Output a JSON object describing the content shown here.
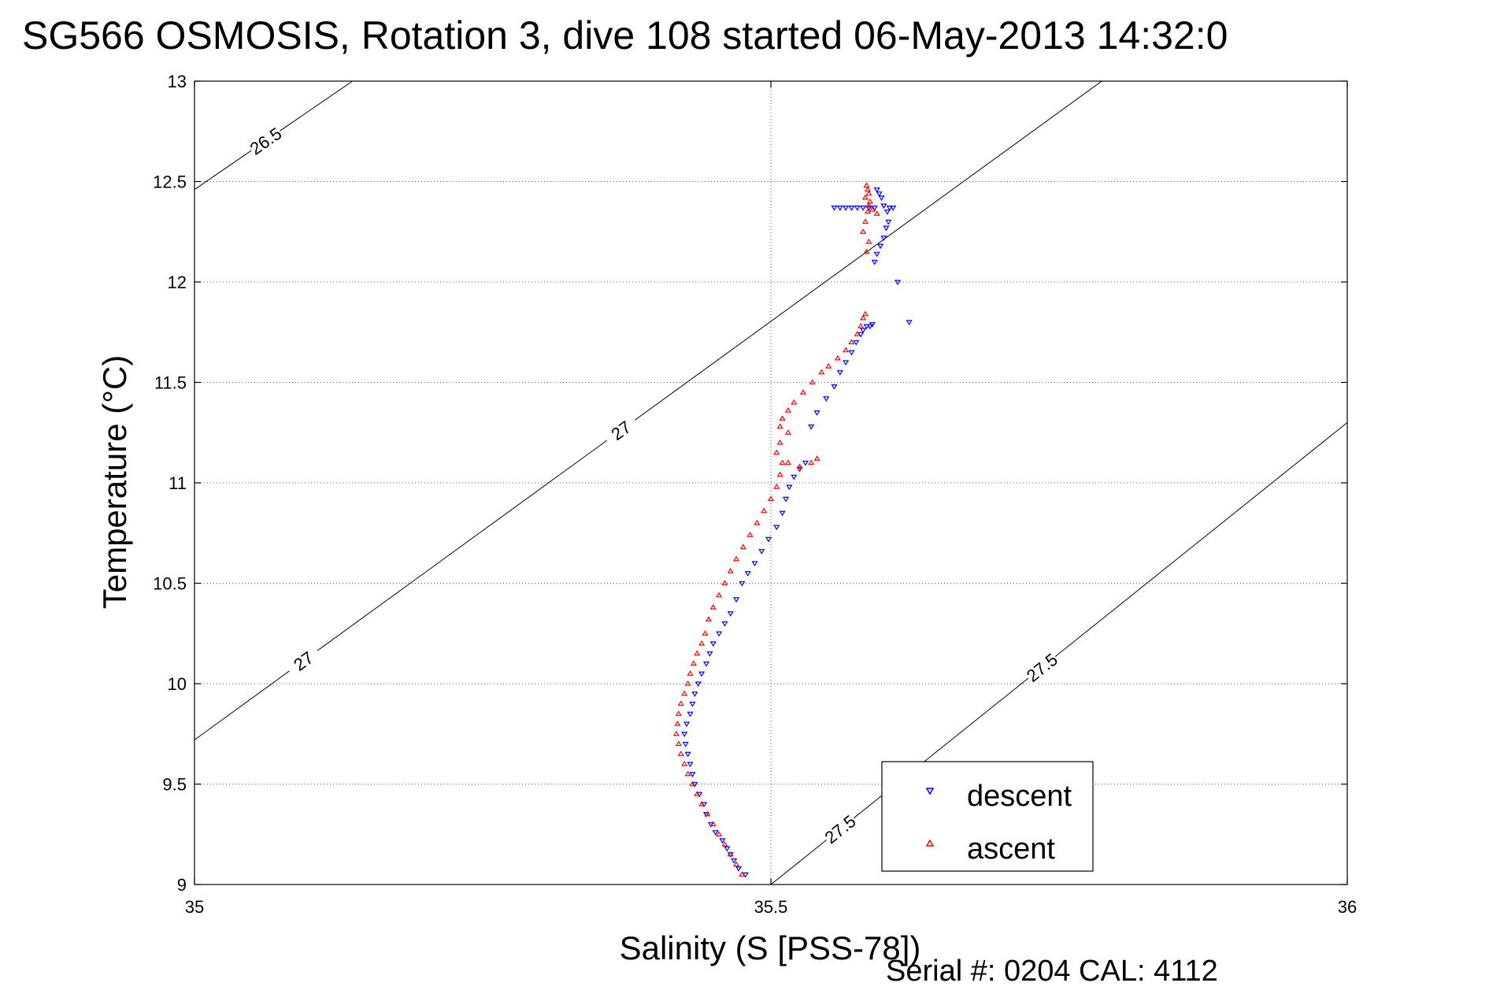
{
  "chart_data": {
    "type": "scatter",
    "title": "SG566 OSMOSIS, Rotation 3, dive 108 started 06-May-2013 14:32:0",
    "xlabel": "Salinity (S [PSS-78])",
    "ylabel": "Temperature (°C)",
    "footer": "Serial #: 0204  CAL: 4112",
    "xlim": [
      35,
      36
    ],
    "ylim": [
      9,
      13
    ],
    "xticks": [
      35,
      35.5,
      36
    ],
    "xtick_labels": [
      "35",
      "35.5",
      "36"
    ],
    "yticks": [
      9,
      9.5,
      10,
      10.5,
      11,
      11.5,
      12,
      12.5,
      13
    ],
    "ytick_labels": [
      "9",
      "9.5",
      "10",
      "10.5",
      "11",
      "11.5",
      "12",
      "12.5",
      "13"
    ],
    "grid": true,
    "legend_position": "bottom-right",
    "series": [
      {
        "name": "descent",
        "marker": "triangle-down",
        "color": "#0000ff",
        "x": [
          35.478,
          35.472,
          35.468,
          35.465,
          35.462,
          35.458,
          35.452,
          35.448,
          35.444,
          35.442,
          35.438,
          35.434,
          35.432,
          35.43,
          35.428,
          35.426,
          35.425,
          35.427,
          35.43,
          35.432,
          35.434,
          35.437,
          35.44,
          35.444,
          35.447,
          35.45,
          35.455,
          35.46,
          35.465,
          35.47,
          35.475,
          35.48,
          35.486,
          35.492,
          35.498,
          35.505,
          35.51,
          35.513,
          35.516,
          35.52,
          35.525,
          35.53,
          35.535,
          35.54,
          35.548,
          35.555,
          35.56,
          35.565,
          35.57,
          35.574,
          35.578,
          35.58,
          35.583,
          35.586,
          35.588,
          35.59,
          35.592,
          35.595,
          35.598,
          35.6,
          35.602,
          35.601,
          35.598,
          35.596,
          35.594,
          35.592,
          35.59,
          35.585,
          35.58,
          35.575,
          35.57,
          35.565,
          35.56,
          35.555,
          35.603,
          35.606,
          35.61,
          35.62
        ],
        "y": [
          9.05,
          9.08,
          9.12,
          9.15,
          9.18,
          9.22,
          9.26,
          9.3,
          9.35,
          9.4,
          9.45,
          9.5,
          9.55,
          9.6,
          9.65,
          9.7,
          9.75,
          9.8,
          9.85,
          9.9,
          9.95,
          10.0,
          10.05,
          10.1,
          10.15,
          10.2,
          10.25,
          10.3,
          10.35,
          10.42,
          10.5,
          10.55,
          10.6,
          10.66,
          10.72,
          10.78,
          10.85,
          10.92,
          10.98,
          11.03,
          11.07,
          11.1,
          11.28,
          11.35,
          11.42,
          11.48,
          11.55,
          11.6,
          11.65,
          11.7,
          11.74,
          11.76,
          11.78,
          11.78,
          11.79,
          12.1,
          12.14,
          12.18,
          12.22,
          12.27,
          12.3,
          12.35,
          12.38,
          12.42,
          12.44,
          12.46,
          12.37,
          12.37,
          12.37,
          12.37,
          12.37,
          12.37,
          12.37,
          12.37,
          12.37,
          12.37,
          12.0,
          11.8
        ]
      },
      {
        "name": "ascent",
        "marker": "triangle-up",
        "color": "#ff0000",
        "x": [
          35.475,
          35.47,
          35.465,
          35.46,
          35.455,
          35.45,
          35.445,
          35.44,
          35.436,
          35.432,
          35.428,
          35.425,
          35.422,
          35.42,
          35.418,
          35.419,
          35.42,
          35.422,
          35.425,
          35.428,
          35.43,
          35.433,
          35.436,
          35.44,
          35.443,
          35.446,
          35.45,
          35.455,
          35.46,
          35.465,
          35.47,
          35.476,
          35.482,
          35.488,
          35.494,
          35.5,
          35.505,
          35.508,
          35.51,
          35.505,
          35.508,
          35.515,
          35.525,
          35.535,
          35.54,
          35.515,
          35.508,
          35.51,
          35.515,
          35.52,
          35.528,
          35.536,
          35.544,
          35.55,
          35.558,
          35.565,
          35.57,
          35.575,
          35.578,
          35.58,
          35.582,
          35.583,
          35.585,
          35.58,
          35.582,
          35.584,
          35.586,
          35.585,
          35.584,
          35.583,
          35.582,
          35.585,
          35.588,
          35.592
        ],
        "y": [
          9.05,
          9.1,
          9.15,
          9.2,
          9.25,
          9.3,
          9.35,
          9.4,
          9.45,
          9.5,
          9.55,
          9.6,
          9.65,
          9.7,
          9.75,
          9.8,
          9.85,
          9.9,
          9.95,
          10.0,
          10.05,
          10.1,
          10.15,
          10.2,
          10.25,
          10.32,
          10.38,
          10.44,
          10.5,
          10.56,
          10.62,
          10.68,
          10.74,
          10.8,
          10.86,
          10.92,
          10.98,
          11.04,
          11.1,
          11.15,
          11.2,
          11.1,
          11.08,
          11.1,
          11.12,
          11.25,
          11.28,
          11.32,
          11.36,
          11.4,
          11.45,
          11.5,
          11.55,
          11.58,
          11.62,
          11.66,
          11.7,
          11.74,
          11.78,
          11.82,
          11.84,
          12.15,
          12.2,
          12.25,
          12.3,
          12.35,
          12.4,
          12.44,
          12.46,
          12.48,
          12.42,
          12.38,
          12.36,
          12.34
        ]
      }
    ],
    "contours": [
      {
        "label": "26.5",
        "points": [
          [
            35.0,
            12.46
          ],
          [
            35.137,
            13.0
          ]
        ]
      },
      {
        "label": "27",
        "points": [
          [
            35.0,
            9.72
          ],
          [
            35.787,
            13.0
          ]
        ]
      },
      {
        "label": "27.5",
        "points": [
          [
            35.5,
            9.0
          ],
          [
            36.0,
            11.3
          ]
        ]
      }
    ]
  }
}
